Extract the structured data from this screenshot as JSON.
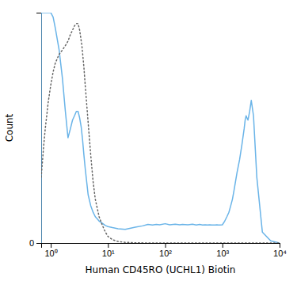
{
  "chart_data": {
    "type": "line",
    "xlabel": "Human CD45RO (UCHL1) Biotin",
    "ylabel": "Count",
    "log": "x",
    "grid": false,
    "xlim": [
      0.68,
      10000
    ],
    "ylim": [
      0,
      1.05
    ],
    "xticks": [
      {
        "value": 1,
        "label": "10⁰"
      },
      {
        "value": 10,
        "label": "10¹"
      },
      {
        "value": 100,
        "label": "10²"
      },
      {
        "value": 1000,
        "label": "10³"
      },
      {
        "value": 10000,
        "label": "10⁴"
      }
    ],
    "yticks": [
      0
    ],
    "series": [
      {
        "color": "#6ab4e8",
        "line_style": "solid",
        "x": [
          0.68,
          0.72,
          0.75,
          0.78,
          0.82,
          0.85,
          0.9,
          1.0,
          1.1,
          1.2,
          1.4,
          1.6,
          1.8,
          2.0,
          2.2,
          2.4,
          2.6,
          2.8,
          3.0,
          3.2,
          3.4,
          3.6,
          3.8,
          4.0,
          4.5,
          5.0,
          5.5,
          6.0,
          6.5,
          7.0,
          8.0,
          9.0,
          10.0,
          12.0,
          15.0,
          20.0,
          25.0,
          30.0,
          40.0,
          50.0,
          60.0,
          70.0,
          80.0,
          100.0,
          120.0,
          150.0,
          180.0,
          200.0,
          250.0,
          300.0,
          350.0,
          400.0,
          450.0,
          500.0,
          550.0,
          600.0,
          650.0,
          700.0,
          750.0,
          800.0,
          850.0,
          900.0,
          1000.0,
          1100.0,
          1200.0,
          1300.0,
          1400.0,
          1500.0,
          1600.0,
          1800.0,
          2000.0,
          2200.0,
          2400.0,
          2500.0,
          2600.0,
          2800.0,
          3000.0,
          3200.0,
          3500.0,
          4000.0,
          5000.0,
          7000.0,
          10000.0
        ],
        "values": [
          1.05,
          1.05,
          1.05,
          1.05,
          1.05,
          1.05,
          1.05,
          1.05,
          1.03,
          0.98,
          0.88,
          0.75,
          0.6,
          0.48,
          0.52,
          0.56,
          0.58,
          0.6,
          0.6,
          0.57,
          0.53,
          0.47,
          0.4,
          0.34,
          0.22,
          0.17,
          0.14,
          0.12,
          0.11,
          0.1,
          0.09,
          0.08,
          0.075,
          0.07,
          0.065,
          0.062,
          0.068,
          0.072,
          0.078,
          0.085,
          0.082,
          0.085,
          0.083,
          0.088,
          0.083,
          0.086,
          0.083,
          0.085,
          0.083,
          0.086,
          0.082,
          0.085,
          0.082,
          0.083,
          0.082,
          0.083,
          0.082,
          0.082,
          0.082,
          0.083,
          0.082,
          0.082,
          0.083,
          0.1,
          0.12,
          0.14,
          0.17,
          0.2,
          0.24,
          0.32,
          0.38,
          0.45,
          0.52,
          0.56,
          0.58,
          0.56,
          0.6,
          0.65,
          0.58,
          0.3,
          0.05,
          0.01,
          0.0
        ]
      },
      {
        "color": "#666666",
        "line_style": "dotted",
        "x": [
          0.68,
          0.72,
          0.75,
          0.8,
          0.85,
          0.9,
          1.0,
          1.1,
          1.2,
          1.4,
          1.6,
          1.8,
          2.0,
          2.2,
          2.4,
          2.6,
          2.8,
          3.0,
          3.2,
          3.5,
          3.8,
          4.0,
          4.5,
          5.0,
          5.5,
          6.0,
          7.0,
          8.0,
          9.0,
          10.0,
          12.0,
          15.0,
          20.0,
          30.0,
          50.0,
          100.0,
          200.0,
          500.0,
          1000.0,
          10000.0
        ],
        "values": [
          0.3,
          0.38,
          0.44,
          0.52,
          0.58,
          0.64,
          0.72,
          0.78,
          0.82,
          0.86,
          0.88,
          0.9,
          0.92,
          0.95,
          0.97,
          0.99,
          1.0,
          1.0,
          0.97,
          0.9,
          0.8,
          0.72,
          0.55,
          0.4,
          0.28,
          0.2,
          0.12,
          0.08,
          0.05,
          0.03,
          0.015,
          0.007,
          0.003,
          0.001,
          0.0,
          0.0,
          0.0,
          0.0,
          0.0,
          0.0
        ]
      }
    ]
  }
}
